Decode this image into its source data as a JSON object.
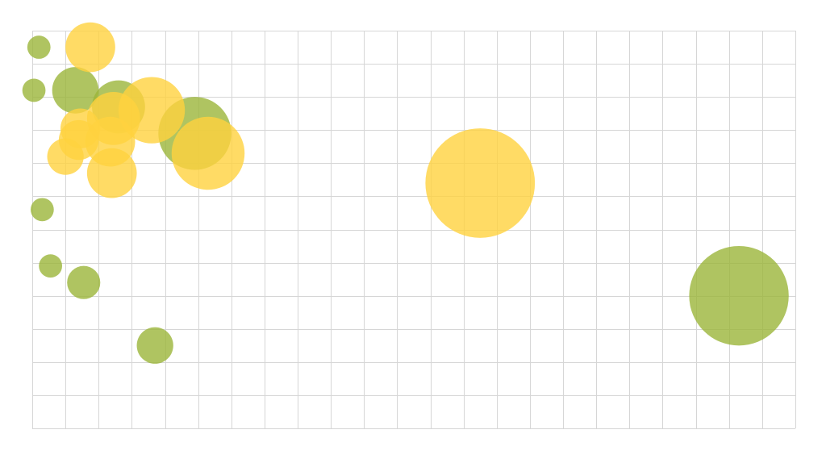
{
  "chart_data": {
    "type": "scatter",
    "variant": "bubble",
    "title": "",
    "xlabel": "",
    "ylabel": "",
    "xlim": [
      0,
      23
    ],
    "ylim": [
      0,
      12
    ],
    "grid": true,
    "legend": "none",
    "grid_color": "#d6d6d6",
    "background": "#ffffff",
    "series": [
      {
        "color": "#9bb53a",
        "points": [
          {
            "x": 0.2,
            "y": 11.5,
            "r": 0.35
          },
          {
            "x": 0.05,
            "y": 10.2,
            "r": 0.35
          },
          {
            "x": 1.3,
            "y": 10.2,
            "r": 0.7
          },
          {
            "x": 2.6,
            "y": 9.7,
            "r": 0.8
          },
          {
            "x": 4.9,
            "y": 8.9,
            "r": 1.1
          },
          {
            "x": 0.3,
            "y": 6.6,
            "r": 0.35
          },
          {
            "x": 0.55,
            "y": 4.9,
            "r": 0.35
          },
          {
            "x": 1.55,
            "y": 4.4,
            "r": 0.5
          },
          {
            "x": 3.7,
            "y": 2.5,
            "r": 0.55
          },
          {
            "x": 21.3,
            "y": 4.0,
            "r": 1.5
          }
        ]
      },
      {
        "color": "#ffd23e",
        "points": [
          {
            "x": 1.75,
            "y": 11.5,
            "r": 0.75
          },
          {
            "x": 3.6,
            "y": 9.6,
            "r": 1.0
          },
          {
            "x": 2.45,
            "y": 9.35,
            "r": 0.8
          },
          {
            "x": 1.45,
            "y": 9.05,
            "r": 0.6
          },
          {
            "x": 1.4,
            "y": 8.7,
            "r": 0.6
          },
          {
            "x": 2.35,
            "y": 8.65,
            "r": 0.75
          },
          {
            "x": 1.0,
            "y": 8.2,
            "r": 0.55
          },
          {
            "x": 5.3,
            "y": 8.3,
            "r": 1.1
          },
          {
            "x": 2.4,
            "y": 7.7,
            "r": 0.75
          },
          {
            "x": 13.5,
            "y": 7.4,
            "r": 1.65
          }
        ]
      }
    ]
  }
}
